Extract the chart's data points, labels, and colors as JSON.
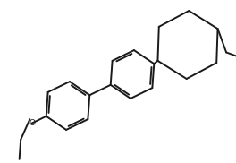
{
  "bg_color": "#ffffff",
  "line_color": "#1a1a1a",
  "line_width": 1.4,
  "fig_width": 2.64,
  "fig_height": 1.82,
  "dpi": 100,
  "xlim": [
    0,
    264
  ],
  "ylim": [
    0,
    182
  ]
}
